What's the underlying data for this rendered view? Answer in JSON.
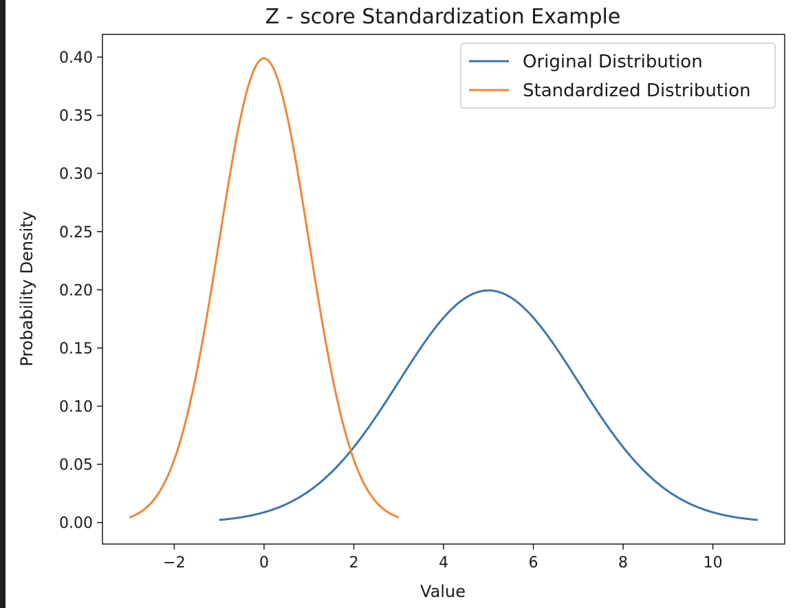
{
  "chart_data": {
    "type": "line",
    "title": "Z - score Standardization Example",
    "xlabel": "Value",
    "ylabel": "Probability Density",
    "xlim": [
      -3.6,
      11.6
    ],
    "ylim": [
      -0.0185,
      0.4195
    ],
    "xticks": [
      -2,
      0,
      2,
      4,
      6,
      8,
      10
    ],
    "xtick_labels": [
      "−2",
      "0",
      "2",
      "4",
      "6",
      "8",
      "10"
    ],
    "yticks": [
      0.0,
      0.05,
      0.1,
      0.15,
      0.2,
      0.25,
      0.3,
      0.35,
      0.4
    ],
    "ytick_labels": [
      "0.00",
      "0.05",
      "0.10",
      "0.15",
      "0.20",
      "0.25",
      "0.30",
      "0.35",
      "0.40"
    ],
    "grid": false,
    "legend_position": "top-right",
    "series": [
      {
        "name": "Original Distribution",
        "color": "#3b76af",
        "distribution": "normal",
        "mean": 5,
        "std": 2,
        "x_range": [
          -1,
          11
        ]
      },
      {
        "name": "Standardized Distribution",
        "color": "#ef8636",
        "distribution": "normal",
        "mean": 0,
        "std": 1,
        "x_range": [
          -3,
          3
        ]
      }
    ]
  }
}
